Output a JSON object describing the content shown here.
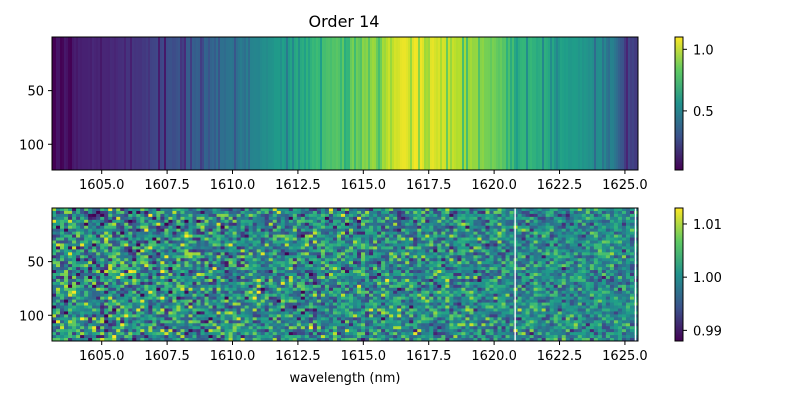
{
  "chart_data": [
    {
      "type": "heatmap",
      "title": "Order 14",
      "xlabel": "",
      "ylabel": "",
      "xlim": [
        1603.1,
        1625.5
      ],
      "ylim": [
        124,
        0
      ],
      "x_ticks": [
        1605.0,
        1607.5,
        1610.0,
        1612.5,
        1615.0,
        1617.5,
        1620.0,
        1622.5,
        1625.0
      ],
      "x_tick_labels": [
        "1605.0",
        "1607.5",
        "1610.0",
        "1612.5",
        "1615.0",
        "1617.5",
        "1620.0",
        "1622.5",
        "1625.0"
      ],
      "y_ticks": [
        50,
        100
      ],
      "y_tick_labels": [
        "50",
        "100"
      ],
      "colormap": "viridis",
      "colorbar": {
        "min": 0.02,
        "max": 1.1,
        "ticks": [
          0.5,
          1.0
        ],
        "tick_labels": [
          "0.5",
          "1.0"
        ]
      },
      "profile": {
        "x": [
          1603.1,
          1604.0,
          1605.0,
          1606.0,
          1606.5,
          1607.0,
          1607.5,
          1608.0,
          1608.5,
          1609.0,
          1609.5,
          1610.0,
          1610.5,
          1611.0,
          1611.5,
          1612.0,
          1612.5,
          1613.0,
          1613.5,
          1614.0,
          1614.5,
          1615.0,
          1615.5,
          1616.0,
          1616.5,
          1617.0,
          1617.5,
          1618.0,
          1618.5,
          1619.0,
          1619.5,
          1620.0,
          1620.5,
          1621.0,
          1621.5,
          1622.0,
          1622.5,
          1623.0,
          1623.5,
          1624.0,
          1624.5,
          1625.0,
          1625.5
        ],
        "values": [
          0.08,
          0.1,
          0.14,
          0.17,
          0.2,
          0.24,
          0.27,
          0.3,
          0.33,
          0.36,
          0.4,
          0.43,
          0.47,
          0.52,
          0.57,
          0.62,
          0.67,
          0.72,
          0.77,
          0.8,
          0.86,
          0.9,
          0.95,
          1.0,
          1.05,
          1.07,
          1.06,
          1.02,
          1.0,
          0.95,
          0.9,
          0.86,
          0.8,
          0.76,
          0.72,
          0.68,
          0.64,
          0.6,
          0.58,
          0.55,
          0.5,
          0.25,
          0.2
        ]
      }
    },
    {
      "type": "heatmap",
      "title": "",
      "xlabel": "wavelength (nm)",
      "ylabel": "",
      "xlim": [
        1603.1,
        1625.5
      ],
      "ylim": [
        124,
        0
      ],
      "x_ticks": [
        1605.0,
        1607.5,
        1610.0,
        1612.5,
        1615.0,
        1617.5,
        1620.0,
        1622.5,
        1625.0
      ],
      "x_tick_labels": [
        "1605.0",
        "1607.5",
        "1610.0",
        "1612.5",
        "1615.0",
        "1617.5",
        "1620.0",
        "1622.5",
        "1625.0"
      ],
      "y_ticks": [
        50,
        100
      ],
      "y_tick_labels": [
        "50",
        "100"
      ],
      "colormap": "viridis",
      "colorbar": {
        "min": 0.988,
        "max": 1.013,
        "ticks": [
          0.99,
          1.0,
          1.01
        ],
        "tick_labels": [
          "0.99",
          "1.00",
          "1.01"
        ]
      },
      "mean_value": 1.0,
      "white_columns": [
        1620.8,
        1625.4
      ]
    }
  ]
}
